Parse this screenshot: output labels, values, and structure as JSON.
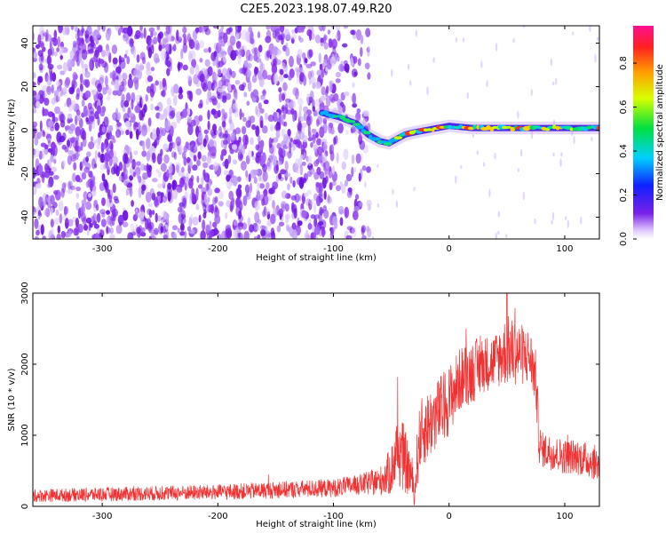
{
  "title": "C2E5.2023.198.07.49.R20",
  "colors": {
    "snr_line": "#f03232",
    "noise_purple": "#7a20e8",
    "background": "#ffffff"
  },
  "chart_data": [
    {
      "type": "heatmap",
      "name": "spectrogram",
      "xlabel": "Height of straight line (km)",
      "ylabel": "Frequency (Hz)",
      "xlim": [
        -360,
        130
      ],
      "ylim": [
        -50,
        48
      ],
      "xticks": [
        -300,
        -200,
        -100,
        0,
        100
      ],
      "yticks": [
        -40,
        -20,
        0,
        20,
        40
      ],
      "grid": false,
      "noise_extent_km": [
        -360,
        -75
      ],
      "signal_ridge": {
        "x": [
          -110,
          -95,
          -80,
          -70,
          -60,
          -52,
          -45,
          -38,
          -30,
          -20,
          -10,
          0,
          20,
          40,
          60,
          80,
          100,
          120,
          130
        ],
        "y": [
          8,
          6,
          3,
          -2,
          -5,
          -6,
          -4,
          -2,
          -1,
          0,
          1,
          2,
          1,
          1,
          1,
          1,
          1,
          1,
          1
        ]
      },
      "colorbar": {
        "label": "Normalized spectral amplitude",
        "range": [
          0,
          0.97
        ],
        "ticks": [
          0.0,
          0.2,
          0.4,
          0.6,
          0.8
        ]
      }
    },
    {
      "type": "line",
      "name": "snr",
      "xlabel": "Height of straight line (km)",
      "ylabel": "SNR (10 * v/v)",
      "xlim": [
        -360,
        130
      ],
      "ylim": [
        0,
        3000
      ],
      "xticks": [
        -300,
        -200,
        -100,
        0,
        100
      ],
      "yticks": [
        0,
        1000,
        2000,
        3000
      ],
      "grid": false,
      "envelope": {
        "x": [
          -360,
          -300,
          -200,
          -100,
          -80,
          -60,
          -50,
          -45,
          -40,
          -32,
          -30,
          -28,
          -25,
          -20,
          -10,
          0,
          10,
          20,
          30,
          40,
          50,
          60,
          70,
          75,
          78,
          80,
          90,
          100,
          110,
          120,
          130
        ],
        "mean": [
          150,
          170,
          200,
          260,
          300,
          350,
          500,
          800,
          700,
          400,
          100,
          600,
          1000,
          1100,
          1300,
          1500,
          1800,
          1900,
          2000,
          2050,
          2200,
          2150,
          2100,
          1800,
          900,
          800,
          750,
          700,
          700,
          650,
          600
        ],
        "amp": [
          90,
          100,
          110,
          130,
          140,
          200,
          350,
          500,
          500,
          300,
          100,
          400,
          500,
          500,
          500,
          500,
          450,
          450,
          400,
          400,
          500,
          450,
          400,
          400,
          300,
          250,
          250,
          250,
          250,
          250,
          250
        ]
      },
      "peak_value": 3000,
      "peak_x": 50
    }
  ]
}
